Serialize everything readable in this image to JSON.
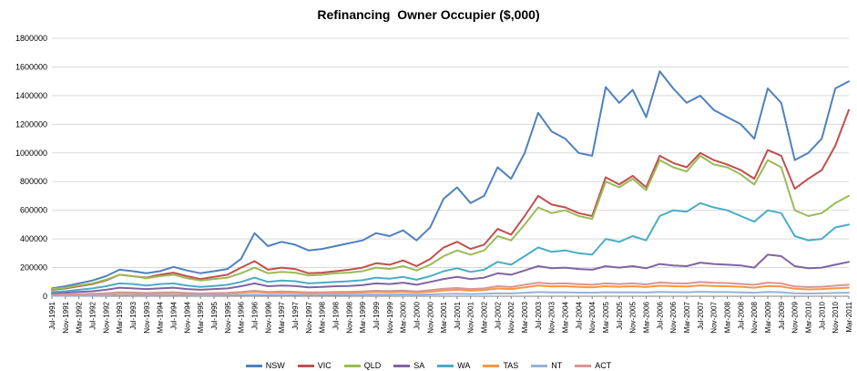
{
  "chart_data": {
    "type": "line",
    "title": "Refinancing  Owner Occupier ($,000)",
    "xlabel": "",
    "ylabel": "",
    "ylim": [
      0,
      1800000
    ],
    "y_ticks": [
      0,
      200000,
      400000,
      600000,
      800000,
      1000000,
      1200000,
      1400000,
      1600000,
      1800000
    ],
    "grid": true,
    "legend_position": "bottom",
    "x_tick_labels": [
      "Jul-1991",
      "Nov-1991",
      "Mar-1992",
      "Jul-1992",
      "Nov-1992",
      "Mar-1993",
      "Jul-1993",
      "Nov-1993",
      "Mar-1994",
      "Jul-1994",
      "Nov-1994",
      "Mar-1995",
      "Jul-1995",
      "Nov-1995",
      "Mar-1996",
      "Jul-1996",
      "Nov-1996",
      "Mar-1997",
      "Jul-1997",
      "Nov-1997",
      "Mar-1998",
      "Jul-1998",
      "Nov-1998",
      "Mar-1999",
      "Jul-1999",
      "Nov-1999",
      "Mar-2000",
      "Jul-2000",
      "Nov-2000",
      "Mar-2001",
      "Jul-2001",
      "Nov-2001",
      "Mar-2002",
      "Jul-2002",
      "Nov-2002",
      "Mar-2003",
      "Jul-2003",
      "Nov-2003",
      "Mar-2004",
      "Jul-2004",
      "Nov-2004",
      "Mar-2005",
      "Jul-2005",
      "Nov-2005",
      "Mar-2006",
      "Jul-2006",
      "Nov-2006",
      "Mar-2007",
      "Jul-2007",
      "Nov-2007",
      "Mar-2008",
      "Jul-2008",
      "Nov-2008",
      "Mar-2009",
      "Jul-2009",
      "Nov-2009",
      "Mar-2010",
      "Jul-2010",
      "Nov-2010",
      "Mar-2011"
    ],
    "series": [
      {
        "name": "NSW",
        "color": "#4F81BD",
        "values": [
          55000,
          70000,
          90000,
          110000,
          140000,
          185000,
          175000,
          160000,
          175000,
          205000,
          180000,
          160000,
          175000,
          190000,
          260000,
          440000,
          350000,
          380000,
          360000,
          320000,
          330000,
          350000,
          370000,
          390000,
          440000,
          420000,
          460000,
          390000,
          480000,
          680000,
          760000,
          650000,
          700000,
          900000,
          820000,
          1000000,
          1280000,
          1150000,
          1100000,
          1000000,
          980000,
          1460000,
          1350000,
          1440000,
          1250000,
          1570000,
          1450000,
          1350000,
          1400000,
          1300000,
          1250000,
          1200000,
          1100000,
          1450000,
          1350000,
          950000,
          1000000,
          1100000,
          1450000,
          1500000
        ]
      },
      {
        "name": "VIC",
        "color": "#C0504D",
        "values": [
          45000,
          55000,
          70000,
          85000,
          110000,
          150000,
          140000,
          130000,
          150000,
          165000,
          140000,
          120000,
          135000,
          150000,
          200000,
          245000,
          185000,
          200000,
          190000,
          160000,
          165000,
          175000,
          185000,
          200000,
          230000,
          220000,
          250000,
          210000,
          260000,
          340000,
          380000,
          330000,
          360000,
          470000,
          430000,
          560000,
          700000,
          640000,
          620000,
          580000,
          560000,
          830000,
          780000,
          840000,
          760000,
          980000,
          930000,
          900000,
          1000000,
          950000,
          920000,
          880000,
          820000,
          1020000,
          980000,
          750000,
          820000,
          880000,
          1050000,
          1300000
        ]
      },
      {
        "name": "QLD",
        "color": "#9BBB59",
        "values": [
          50000,
          60000,
          75000,
          90000,
          115000,
          150000,
          140000,
          125000,
          140000,
          150000,
          125000,
          110000,
          120000,
          130000,
          160000,
          200000,
          160000,
          170000,
          165000,
          145000,
          150000,
          160000,
          165000,
          175000,
          200000,
          190000,
          210000,
          180000,
          220000,
          280000,
          320000,
          290000,
          320000,
          420000,
          390000,
          500000,
          620000,
          580000,
          600000,
          560000,
          540000,
          800000,
          760000,
          820000,
          740000,
          950000,
          900000,
          870000,
          980000,
          920000,
          900000,
          850000,
          780000,
          950000,
          900000,
          600000,
          560000,
          580000,
          650000,
          700000
        ]
      },
      {
        "name": "SA",
        "color": "#8064A2",
        "values": [
          20000,
          25000,
          30000,
          35000,
          45000,
          60000,
          55000,
          50000,
          55000,
          60000,
          50000,
          45000,
          50000,
          55000,
          70000,
          90000,
          70000,
          75000,
          72000,
          62000,
          65000,
          70000,
          72000,
          78000,
          90000,
          85000,
          95000,
          80000,
          100000,
          120000,
          135000,
          120000,
          130000,
          160000,
          150000,
          180000,
          210000,
          195000,
          200000,
          190000,
          185000,
          210000,
          200000,
          210000,
          195000,
          225000,
          215000,
          210000,
          235000,
          225000,
          220000,
          215000,
          200000,
          290000,
          280000,
          210000,
          195000,
          200000,
          220000,
          240000
        ]
      },
      {
        "name": "WA",
        "color": "#4BACC6",
        "values": [
          30000,
          35000,
          45000,
          55000,
          70000,
          90000,
          85000,
          75000,
          85000,
          90000,
          75000,
          65000,
          72000,
          80000,
          100000,
          130000,
          100000,
          110000,
          105000,
          90000,
          95000,
          100000,
          105000,
          112000,
          130000,
          122000,
          135000,
          115000,
          140000,
          175000,
          195000,
          170000,
          185000,
          240000,
          220000,
          280000,
          340000,
          310000,
          320000,
          300000,
          290000,
          400000,
          380000,
          420000,
          390000,
          560000,
          600000,
          590000,
          650000,
          620000,
          600000,
          560000,
          520000,
          600000,
          580000,
          420000,
          390000,
          400000,
          480000,
          500000
        ]
      },
      {
        "name": "TAS",
        "color": "#F79646",
        "values": [
          8000,
          9000,
          11000,
          13000,
          16000,
          22000,
          20000,
          18000,
          20000,
          22000,
          18000,
          16000,
          17000,
          19000,
          24000,
          30000,
          24000,
          26000,
          25000,
          21000,
          22000,
          23000,
          24000,
          26000,
          30000,
          28000,
          31000,
          26000,
          32000,
          40000,
          45000,
          39000,
          43000,
          54000,
          50000,
          62000,
          75000,
          68000,
          70000,
          65000,
          62000,
          70000,
          66000,
          70000,
          64000,
          74000,
          70000,
          68000,
          76000,
          72000,
          70000,
          66000,
          60000,
          72000,
          68000,
          52000,
          48000,
          50000,
          56000,
          60000
        ]
      },
      {
        "name": "NT",
        "color": "#95B3D7",
        "values": [
          3000,
          3500,
          4000,
          5000,
          6000,
          8000,
          7500,
          7000,
          7500,
          8000,
          7000,
          6500,
          7000,
          7500,
          9000,
          11000,
          9000,
          10000,
          9500,
          8500,
          9000,
          9500,
          10000,
          10500,
          12000,
          11000,
          12500,
          10500,
          13000,
          16000,
          18000,
          15500,
          17000,
          21000,
          19500,
          24000,
          29000,
          26500,
          27000,
          25500,
          24500,
          28000,
          26500,
          28000,
          26000,
          30000,
          28500,
          28000,
          31000,
          29500,
          29000,
          27000,
          25000,
          30000,
          28000,
          21000,
          20000,
          20500,
          23000,
          25000
        ]
      },
      {
        "name": "ACT",
        "color": "#D99694",
        "values": [
          10000,
          12000,
          14000,
          17000,
          21000,
          28000,
          26000,
          23000,
          26000,
          28000,
          23000,
          20000,
          22000,
          24000,
          30000,
          38000,
          30000,
          33000,
          31000,
          27000,
          28000,
          30000,
          31000,
          33000,
          38000,
          36000,
          40000,
          34000,
          42000,
          52000,
          58000,
          50000,
          55000,
          70000,
          64000,
          80000,
          95000,
          87000,
          90000,
          84000,
          80000,
          90000,
          85000,
          90000,
          83000,
          96000,
          91000,
          89000,
          99000,
          94000,
          92000,
          86000,
          80000,
          95000,
          90000,
          68000,
          64000,
          66000,
          74000,
          80000
        ]
      }
    ]
  }
}
